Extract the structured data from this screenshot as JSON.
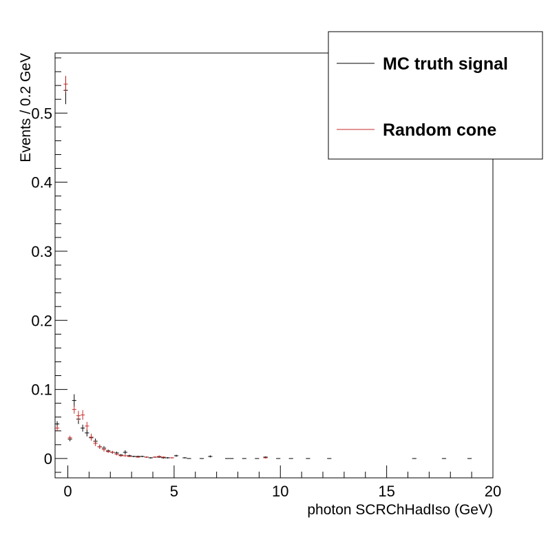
{
  "chart_data": {
    "type": "scatter",
    "title": "",
    "xlabel": "photon SCRChHadIso (GeV)",
    "ylabel": "Events / 0.2 GeV",
    "xlim": [
      -0.6,
      20
    ],
    "ylim": [
      -0.028,
      0.587
    ],
    "x_ticks": [
      0,
      5,
      10,
      15,
      20
    ],
    "y_ticks": [
      0,
      0.1,
      0.2,
      0.3,
      0.4,
      0.5
    ],
    "x_tick_labels": [
      "0",
      "5",
      "10",
      "15",
      "20"
    ],
    "y_tick_labels": [
      "0",
      "0.1",
      "0.2",
      "0.3",
      "0.4",
      "0.5"
    ],
    "grid": false,
    "legend_position": "top-right",
    "bin_width": 0.2,
    "series": [
      {
        "name": "MC truth signal",
        "color": "#000000",
        "points": [
          {
            "x": -0.5,
            "y": 0.05,
            "err": 0.004
          },
          {
            "x": -0.1,
            "y": 0.533,
            "err": 0.02
          },
          {
            "x": 0.1,
            "y": 0.028,
            "err": 0.003
          },
          {
            "x": 0.3,
            "y": 0.084,
            "err": 0.009
          },
          {
            "x": 0.5,
            "y": 0.057,
            "err": 0.007
          },
          {
            "x": 0.7,
            "y": 0.044,
            "err": 0.005
          },
          {
            "x": 0.9,
            "y": 0.037,
            "err": 0.005
          },
          {
            "x": 1.1,
            "y": 0.03,
            "err": 0.004
          },
          {
            "x": 1.3,
            "y": 0.025,
            "err": 0.004
          },
          {
            "x": 1.5,
            "y": 0.017,
            "err": 0.003
          },
          {
            "x": 1.7,
            "y": 0.015,
            "err": 0.003
          },
          {
            "x": 1.9,
            "y": 0.011,
            "err": 0.002
          },
          {
            "x": 2.1,
            "y": 0.009,
            "err": 0.002
          },
          {
            "x": 2.3,
            "y": 0.008,
            "err": 0.002
          },
          {
            "x": 2.5,
            "y": 0.005,
            "err": 0.0015
          },
          {
            "x": 2.7,
            "y": 0.009,
            "err": 0.003
          },
          {
            "x": 2.9,
            "y": 0.004,
            "err": 0.0015
          },
          {
            "x": 3.1,
            "y": 0.003,
            "err": 0.001
          },
          {
            "x": 3.3,
            "y": 0.003,
            "err": 0.001
          },
          {
            "x": 3.5,
            "y": 0.003,
            "err": 0.001
          },
          {
            "x": 3.7,
            "y": 0.002,
            "err": 0.001
          },
          {
            "x": 3.9,
            "y": 0.001,
            "err": 0.001
          },
          {
            "x": 4.1,
            "y": 0.002,
            "err": 0.001
          },
          {
            "x": 4.3,
            "y": 0.002,
            "err": 0.001
          },
          {
            "x": 4.5,
            "y": 0.001,
            "err": 0.001
          },
          {
            "x": 4.7,
            "y": 0.001,
            "err": 0.001
          },
          {
            "x": 5.1,
            "y": 0.004,
            "err": 0.0015
          },
          {
            "x": 5.5,
            "y": 0.001,
            "err": 0.0008
          },
          {
            "x": 6.7,
            "y": 0.003,
            "err": 0.0015
          },
          {
            "x": 9.3,
            "y": 0.002,
            "err": 0.001
          }
        ]
      },
      {
        "name": "Random cone",
        "color": "#c62828",
        "points": [
          {
            "x": -0.5,
            "y": 0.044,
            "err": 0.004
          },
          {
            "x": -0.1,
            "y": 0.542,
            "err": 0.012
          },
          {
            "x": 0.1,
            "y": 0.03,
            "err": 0.003
          },
          {
            "x": 0.3,
            "y": 0.071,
            "err": 0.006
          },
          {
            "x": 0.5,
            "y": 0.062,
            "err": 0.007
          },
          {
            "x": 0.7,
            "y": 0.063,
            "err": 0.007
          },
          {
            "x": 0.9,
            "y": 0.047,
            "err": 0.006
          },
          {
            "x": 1.1,
            "y": 0.031,
            "err": 0.005
          },
          {
            "x": 1.3,
            "y": 0.022,
            "err": 0.004
          },
          {
            "x": 1.5,
            "y": 0.017,
            "err": 0.003
          },
          {
            "x": 1.7,
            "y": 0.013,
            "err": 0.003
          },
          {
            "x": 1.9,
            "y": 0.01,
            "err": 0.002
          },
          {
            "x": 2.1,
            "y": 0.009,
            "err": 0.002
          },
          {
            "x": 2.3,
            "y": 0.006,
            "err": 0.0015
          },
          {
            "x": 2.5,
            "y": 0.004,
            "err": 0.0015
          },
          {
            "x": 2.7,
            "y": 0.004,
            "err": 0.0015
          },
          {
            "x": 2.9,
            "y": 0.003,
            "err": 0.001
          },
          {
            "x": 3.3,
            "y": 0.002,
            "err": 0.001
          },
          {
            "x": 3.7,
            "y": 0.002,
            "err": 0.001
          },
          {
            "x": 4.1,
            "y": 0.002,
            "err": 0.001
          },
          {
            "x": 4.3,
            "y": 0.003,
            "err": 0.0015
          },
          {
            "x": 4.5,
            "y": 0.002,
            "err": 0.001
          },
          {
            "x": 4.9,
            "y": 0.001,
            "err": 0.001
          },
          {
            "x": 9.3,
            "y": 0.001,
            "err": 0.001
          }
        ]
      }
    ],
    "zero_bins": [
      5.7,
      6.3,
      7.5,
      7.7,
      8.3,
      8.9,
      9.9,
      10.5,
      11.3,
      12.3,
      16.3,
      17.7,
      18.9
    ]
  }
}
